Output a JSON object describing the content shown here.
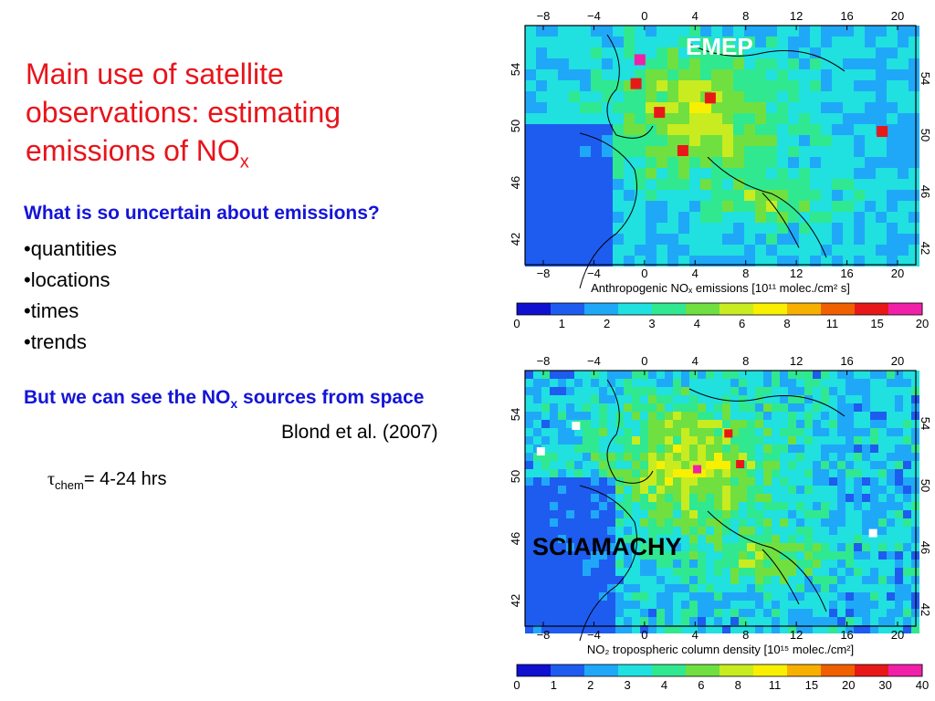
{
  "slide": {
    "title_main": "Main use of satellite observations: estimating emissions of NO",
    "title_sub": "x",
    "question": "What is so uncertain about emissions?",
    "bullets": [
      "quantities",
      "locations",
      "times",
      "trends"
    ],
    "see_prefix": "But we can see the NO",
    "see_sub": "x",
    "see_suffix": " sources from space",
    "citation": "Blond et al. (2007)",
    "tau_symbol": "τ",
    "tau_sub": "chem",
    "tau_value": "= 4-24 hrs"
  },
  "maps": [
    {
      "label": "EMEP",
      "label_color": "#ffffff",
      "lon_ticks": [
        "−8",
        "−4",
        "0",
        "4",
        "8",
        "12",
        "16",
        "20"
      ],
      "lat_ticks": [
        "54",
        "50",
        "46",
        "42"
      ],
      "caption": "Anthropogenic NOₓ emissions [10¹¹ molec./cm² s]",
      "colorbar_ticks": [
        "0",
        "1",
        "2",
        "3",
        "4",
        "6",
        "8",
        "11",
        "15",
        "20"
      ]
    },
    {
      "label": "SCIAMACHY",
      "label_color": "#000000",
      "lon_ticks": [
        "−8",
        "−4",
        "0",
        "4",
        "8",
        "12",
        "16",
        "20"
      ],
      "lat_ticks": [
        "54",
        "50",
        "46",
        "42"
      ],
      "caption": "NO₂ tropospheric column density [10¹⁵ molec./cm²]",
      "colorbar_ticks": [
        "0",
        "1",
        "2",
        "3",
        "4",
        "6",
        "8",
        "11",
        "15",
        "20",
        "30",
        "40"
      ]
    }
  ],
  "colors": {
    "title": "#e8141b",
    "heading": "#1414d8",
    "colorbar": [
      "#1010d0",
      "#1e5cf0",
      "#20a8f8",
      "#20e0e0",
      "#30e890",
      "#70e040",
      "#c8ec20",
      "#f8f000",
      "#f8b000",
      "#f06000",
      "#e81818",
      "#f020a8"
    ]
  }
}
